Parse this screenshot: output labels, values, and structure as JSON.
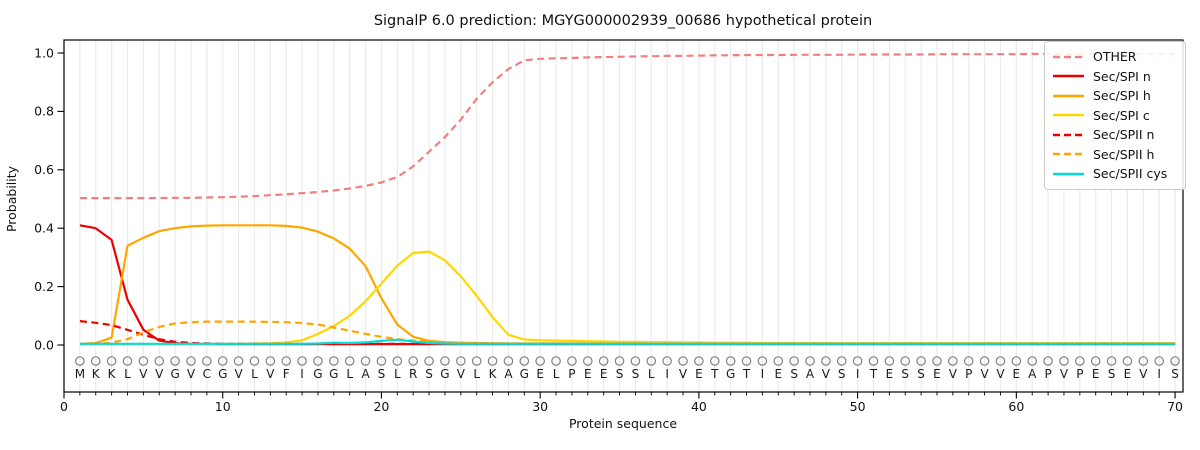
{
  "figure": {
    "background": "#ffffff",
    "tick_color": "#000000",
    "grid_color": "#ebebeb",
    "marker_row": {
      "symbol": "circle-outline",
      "color": "#808080"
    }
  },
  "legend": {
    "position": "upper right",
    "labels": [
      "OTHER",
      "Sec/SPI n",
      "Sec/SPI h",
      "Sec/SPI c",
      "Sec/SPII n",
      "Sec/SPII h",
      "Sec/SPII cys"
    ]
  },
  "chart_data": {
    "type": "line",
    "title": "SignalP 6.0 prediction: MGYG000002939_00686 hypothetical protein",
    "xlabel": "Protein sequence",
    "ylabel": "Probability",
    "xlim": [
      0,
      70.5
    ],
    "ylim": [
      -0.16,
      1.045
    ],
    "grid": "vertical line per residue",
    "legend_position": "upper right",
    "x_tick_values": [
      0,
      10,
      20,
      30,
      40,
      50,
      60,
      70
    ],
    "x_tick_labels": [
      "0",
      "10",
      "20",
      "30",
      "40",
      "50",
      "60",
      "70"
    ],
    "y_tick_values": [
      0.0,
      0.2,
      0.4,
      0.6,
      0.8,
      1.0
    ],
    "y_tick_labels": [
      "0.0",
      "0.2",
      "0.4",
      "0.6",
      "0.8",
      "1.0"
    ],
    "x_positions_note": "x values are residue positions 1..70",
    "sequence": "MKKLVVGVCGVLVFIGGLASLRSGVLKAGELPEESSLIVETGTIESAVSITESSEVPVVEAPVPESEVIS",
    "series": [
      {
        "name": "OTHER",
        "color": "#f08080",
        "dashed": true,
        "values": [
          0.503,
          0.503,
          0.503,
          0.503,
          0.503,
          0.503,
          0.504,
          0.504,
          0.505,
          0.506,
          0.508,
          0.51,
          0.513,
          0.516,
          0.52,
          0.524,
          0.529,
          0.536,
          0.545,
          0.557,
          0.575,
          0.612,
          0.662,
          0.712,
          0.772,
          0.843,
          0.9,
          0.945,
          0.975,
          0.98,
          0.982,
          0.983,
          0.985,
          0.986,
          0.987,
          0.988,
          0.989,
          0.99,
          0.99,
          0.991,
          0.992,
          0.992,
          0.993,
          0.993,
          0.993,
          0.994,
          0.994,
          0.994,
          0.994,
          0.995,
          0.995,
          0.995,
          0.995,
          0.995,
          0.996,
          0.996,
          0.996,
          0.996,
          0.996,
          0.996,
          0.997,
          0.997,
          0.997,
          0.997,
          0.997,
          0.997,
          0.997,
          0.997,
          0.997,
          0.997
        ]
      },
      {
        "name": "Sec/SPI n",
        "color": "#ee0000",
        "dashed": false,
        "values": [
          0.41,
          0.4,
          0.36,
          0.155,
          0.052,
          0.015,
          0.006,
          0.004,
          0.003,
          0.003,
          0.003,
          0.003,
          0.003,
          0.003,
          0.003,
          0.003,
          0.003,
          0.003,
          0.003,
          0.003,
          0.003,
          0.003,
          0.003,
          0.003,
          0.003,
          0.003,
          0.003,
          0.003,
          0.003,
          0.003,
          0.003,
          0.003,
          0.003,
          0.003,
          0.003,
          0.003,
          0.003,
          0.003,
          0.003,
          0.003,
          0.003,
          0.003,
          0.003,
          0.003,
          0.003,
          0.003,
          0.003,
          0.003,
          0.003,
          0.003,
          0.003,
          0.003,
          0.003,
          0.003,
          0.003,
          0.003,
          0.003,
          0.003,
          0.003,
          0.003,
          0.003,
          0.003,
          0.003,
          0.003,
          0.003,
          0.003,
          0.003,
          0.003,
          0.003,
          0.003
        ]
      },
      {
        "name": "Sec/SPI h",
        "color": "#ffa500",
        "dashed": false,
        "values": [
          0.004,
          0.007,
          0.025,
          0.34,
          0.367,
          0.39,
          0.4,
          0.406,
          0.409,
          0.41,
          0.41,
          0.41,
          0.41,
          0.408,
          0.402,
          0.388,
          0.365,
          0.33,
          0.27,
          0.16,
          0.07,
          0.028,
          0.014,
          0.01,
          0.008,
          0.007,
          0.006,
          0.005,
          0.005,
          0.005,
          0.005,
          0.005,
          0.005,
          0.005,
          0.005,
          0.005,
          0.005,
          0.005,
          0.005,
          0.005,
          0.005,
          0.005,
          0.005,
          0.005,
          0.005,
          0.005,
          0.005,
          0.005,
          0.005,
          0.005,
          0.005,
          0.005,
          0.005,
          0.005,
          0.005,
          0.005,
          0.005,
          0.005,
          0.005,
          0.005,
          0.005,
          0.005,
          0.005,
          0.005,
          0.005,
          0.005,
          0.005,
          0.005,
          0.005,
          0.005
        ]
      },
      {
        "name": "Sec/SPI c",
        "color": "#ffd700",
        "dashed": false,
        "values": [
          0.002,
          0.002,
          0.002,
          0.003,
          0.003,
          0.003,
          0.003,
          0.003,
          0.003,
          0.004,
          0.004,
          0.005,
          0.006,
          0.009,
          0.016,
          0.038,
          0.065,
          0.1,
          0.15,
          0.21,
          0.272,
          0.315,
          0.32,
          0.29,
          0.235,
          0.168,
          0.095,
          0.035,
          0.019,
          0.016,
          0.015,
          0.014,
          0.013,
          0.012,
          0.011,
          0.011,
          0.01,
          0.01,
          0.009,
          0.009,
          0.008,
          0.008,
          0.008,
          0.007,
          0.007,
          0.007,
          0.007,
          0.006,
          0.006,
          0.006,
          0.006,
          0.006,
          0.006,
          0.006,
          0.006,
          0.006,
          0.006,
          0.006,
          0.006,
          0.006,
          0.006,
          0.006,
          0.006,
          0.006,
          0.006,
          0.006,
          0.006,
          0.006,
          0.006,
          0.006
        ]
      },
      {
        "name": "Sec/SPII n",
        "color": "#ee0000",
        "dashed": true,
        "values": [
          0.082,
          0.076,
          0.068,
          0.052,
          0.035,
          0.02,
          0.011,
          0.007,
          0.005,
          0.004,
          0.004,
          0.004,
          0.004,
          0.004,
          0.004,
          0.004,
          0.004,
          0.004,
          0.004,
          0.004,
          0.004,
          0.004,
          0.004,
          0.004,
          0.004,
          0.004,
          0.004,
          0.004,
          0.004,
          0.004,
          0.004,
          0.004,
          0.004,
          0.004,
          0.004,
          0.004,
          0.004,
          0.004,
          0.004,
          0.004,
          0.004,
          0.004,
          0.004,
          0.004,
          0.004,
          0.004,
          0.004,
          0.004,
          0.004,
          0.004,
          0.004,
          0.004,
          0.004,
          0.004,
          0.004,
          0.004,
          0.004,
          0.004,
          0.004,
          0.004,
          0.004,
          0.004,
          0.004,
          0.004,
          0.004,
          0.004,
          0.004,
          0.004,
          0.004,
          0.004
        ]
      },
      {
        "name": "Sec/SPII h",
        "color": "#ffa500",
        "dashed": true,
        "values": [
          0.003,
          0.004,
          0.008,
          0.02,
          0.043,
          0.062,
          0.074,
          0.078,
          0.08,
          0.08,
          0.08,
          0.08,
          0.079,
          0.078,
          0.075,
          0.07,
          0.06,
          0.049,
          0.038,
          0.028,
          0.02,
          0.015,
          0.011,
          0.009,
          0.007,
          0.006,
          0.005,
          0.005,
          0.005,
          0.005,
          0.005,
          0.005,
          0.005,
          0.005,
          0.005,
          0.005,
          0.005,
          0.005,
          0.005,
          0.005,
          0.005,
          0.005,
          0.005,
          0.005,
          0.005,
          0.005,
          0.005,
          0.005,
          0.005,
          0.005,
          0.005,
          0.005,
          0.005,
          0.005,
          0.005,
          0.005,
          0.005,
          0.005,
          0.005,
          0.005,
          0.005,
          0.005,
          0.005,
          0.005,
          0.005,
          0.005,
          0.005,
          0.005,
          0.005,
          0.005
        ]
      },
      {
        "name": "Sec/SPII cys",
        "color": "#00dddd",
        "dashed": false,
        "values": [
          0.004,
          0.004,
          0.004,
          0.004,
          0.004,
          0.004,
          0.004,
          0.004,
          0.004,
          0.004,
          0.004,
          0.004,
          0.004,
          0.004,
          0.004,
          0.005,
          0.008,
          0.007,
          0.009,
          0.014,
          0.018,
          0.012,
          0.007,
          0.005,
          0.004,
          0.004,
          0.004,
          0.004,
          0.004,
          0.004,
          0.004,
          0.004,
          0.004,
          0.004,
          0.004,
          0.004,
          0.004,
          0.004,
          0.004,
          0.004,
          0.004,
          0.004,
          0.004,
          0.004,
          0.004,
          0.004,
          0.004,
          0.004,
          0.004,
          0.004,
          0.004,
          0.004,
          0.004,
          0.004,
          0.004,
          0.004,
          0.004,
          0.004,
          0.004,
          0.004,
          0.004,
          0.004,
          0.004,
          0.004,
          0.004,
          0.004,
          0.004,
          0.004,
          0.004,
          0.004
        ]
      }
    ]
  }
}
